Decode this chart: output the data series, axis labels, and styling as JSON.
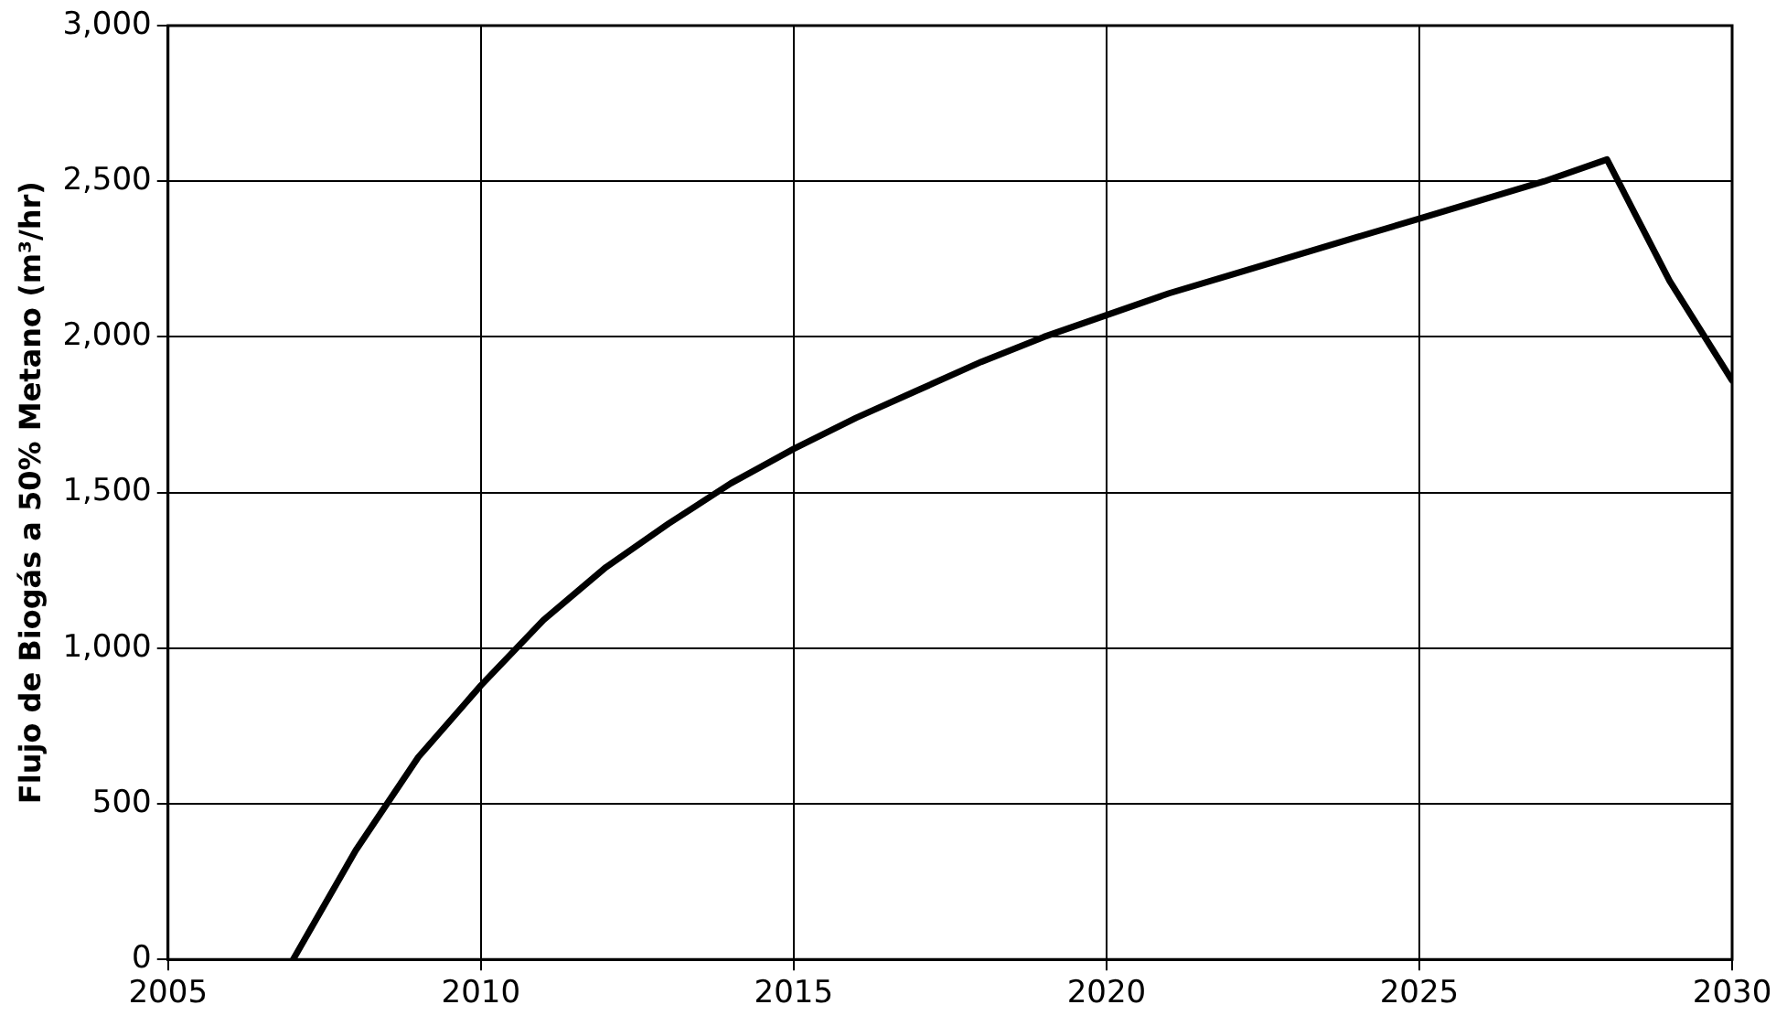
{
  "chart_data": {
    "type": "line",
    "ylabel": "Flujo de Biogás a 50% Metano (m³/hr)",
    "x": [
      2007,
      2008,
      2009,
      2010,
      2011,
      2012,
      2013,
      2014,
      2015,
      2016,
      2017,
      2018,
      2019,
      2020,
      2021,
      2022,
      2023,
      2024,
      2025,
      2026,
      2027,
      2028,
      2029,
      2030
    ],
    "series": [
      {
        "color": "#000000",
        "values": [
          0,
          350,
          650,
          880,
          1090,
          1260,
          1400,
          1530,
          1640,
          1740,
          1830,
          1920,
          2000,
          2070,
          2140,
          2200,
          2260,
          2320,
          2380,
          2440,
          2500,
          2570,
          2180,
          1860
        ]
      }
    ],
    "xlim": [
      2005,
      2030
    ],
    "xticks": [
      {
        "value": 2005,
        "label": "2005"
      },
      {
        "value": 2010,
        "label": "2010"
      },
      {
        "value": 2015,
        "label": "2015"
      },
      {
        "value": 2020,
        "label": "2020"
      },
      {
        "value": 2025,
        "label": "2025"
      },
      {
        "value": 2030,
        "label": "2030"
      }
    ],
    "ylim": [
      0,
      3000
    ],
    "yticks": [
      {
        "value": 0,
        "label": "0"
      },
      {
        "value": 500,
        "label": "500"
      },
      {
        "value": 1000,
        "label": "1,000"
      },
      {
        "value": 1500,
        "label": "1,500"
      },
      {
        "value": 2000,
        "label": "2,000"
      },
      {
        "value": 2500,
        "label": "2,500"
      },
      {
        "value": 3000,
        "label": "3,000"
      }
    ],
    "grid": true,
    "legend": false,
    "marker": "none",
    "line_style": "solid"
  }
}
